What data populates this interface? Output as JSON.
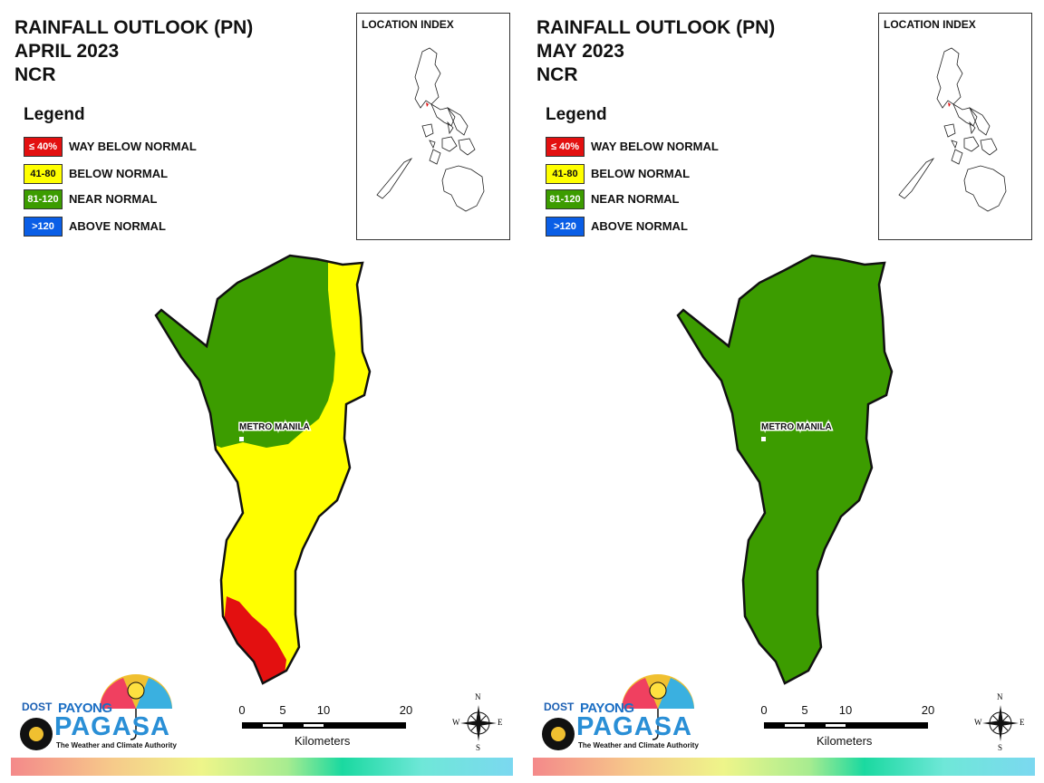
{
  "colors": {
    "way_below": "#e31010",
    "below": "#ffff00",
    "near": "#3c9c00",
    "above": "#0a5ee6"
  },
  "legend": {
    "title": "Legend",
    "items": [
      {
        "swatch": "≤ 40%",
        "label": "WAY BELOW NORMAL",
        "color": "#e31010"
      },
      {
        "swatch": "41-80",
        "label": "BELOW NORMAL",
        "color": "#ffff00"
      },
      {
        "swatch": "81-120",
        "label": "NEAR NORMAL",
        "color": "#3c9c00"
      },
      {
        "swatch": ">120",
        "label": "ABOVE NORMAL",
        "color": "#0a5ee6"
      }
    ]
  },
  "location_index_title": "LOCATION INDEX",
  "city_label": "METRO MANILA",
  "scale": {
    "ticks": [
      "0",
      "5",
      "10",
      "20"
    ],
    "unit": "Kilometers"
  },
  "compass": {
    "n": "N",
    "s": "S",
    "e": "E",
    "w": "W"
  },
  "logo": {
    "dost": "DOST",
    "payong": "PAYONG",
    "pagasa": "PAGASA",
    "tagline": "The Weather and Climate Authority"
  },
  "panels": [
    {
      "title_line1": "RAINFALL OUTLOOK (PN)",
      "title_line2": "APRIL 2023",
      "title_line3": "NCR"
    },
    {
      "title_line1": "RAINFALL OUTLOOK (PN)",
      "title_line2": "MAY 2023",
      "title_line3": "NCR"
    }
  ]
}
